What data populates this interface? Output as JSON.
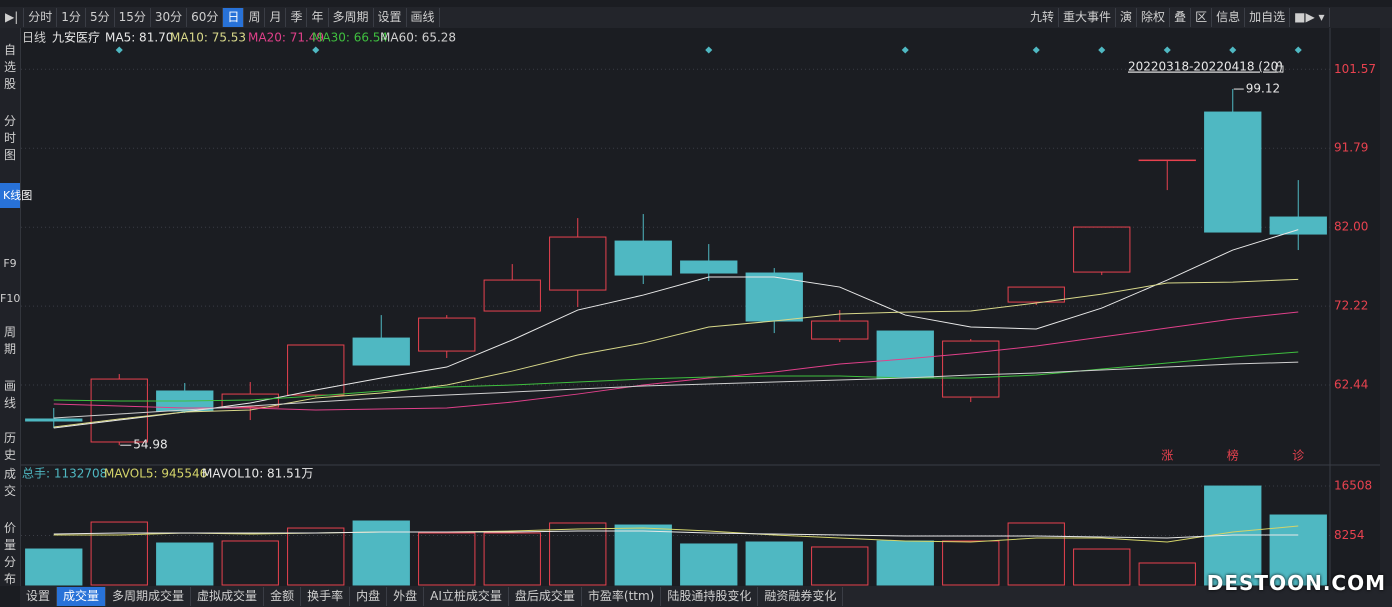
{
  "toolbar": {
    "periods": [
      "分时",
      "1分",
      "5分",
      "15分",
      "30分",
      "60分",
      "日",
      "周",
      "月",
      "季",
      "年",
      "多周期",
      "设置",
      "画线"
    ],
    "active_period": 6,
    "tools": [
      "九转",
      "重大事件",
      "演",
      "除权",
      "叠",
      "区",
      "信息",
      "加自选"
    ]
  },
  "sidebar": {
    "items": [
      "自选股",
      "分时图",
      "K线图",
      "F9",
      "F10",
      "周期",
      "画线",
      "历史",
      "成交",
      "价量分布"
    ],
    "active_item": 2
  },
  "tabs": {
    "items": [
      "设置",
      "成交量",
      "多周期成交量",
      "虚拟成交量",
      "金额",
      "换手率",
      "内盘",
      "外盘",
      "AI立桩成交量",
      "盘后成交量",
      "市盈率(ttm)",
      "陆股通持股变化",
      "融资融券变化"
    ],
    "active_item": 1
  },
  "watermark": "DESTOON.COM",
  "chart_data": [
    {
      "type": "candlestick",
      "title": "日线",
      "subtitle": "九安医疗",
      "period_label": "20220318-20220418 (20)",
      "open": [
        58.23,
        55.38,
        61.7,
        59.71,
        61.2,
        68.26,
        66.65,
        71.61,
        74.21,
        80.28,
        77.81,
        76.32,
        68.14,
        69.13,
        60.95,
        72.72,
        76.44,
        90.32,
        96.27,
        83.26
      ],
      "high": [
        59.59,
        63.8,
        62.69,
        62.81,
        67.4,
        71.11,
        71.11,
        77.43,
        83.13,
        83.63,
        79.91,
        76.94,
        71.73,
        69.13,
        68.14,
        74.58,
        82.02,
        90.32,
        99.12,
        87.84
      ],
      "low": [
        57.11,
        54.98,
        58.97,
        58.1,
        60.95,
        64.92,
        65.79,
        71.61,
        72.11,
        74.96,
        75.33,
        68.88,
        67.77,
        63.31,
        60.33,
        72.35,
        76.07,
        86.6,
        81.4,
        79.17
      ],
      "close": [
        57.98,
        63.18,
        59.22,
        61.32,
        67.4,
        64.92,
        70.74,
        75.45,
        80.78,
        76.07,
        76.32,
        70.37,
        70.37,
        63.31,
        67.89,
        74.58,
        82.02,
        90.32,
        81.4,
        81.15
      ],
      "up_color": "#e8424f",
      "down_color": "#4fb8c2",
      "series": [
        {
          "name": "MA5: 81.70",
          "color": "#e8e8e8",
          "values": [
            57.11,
            58.1,
            59.09,
            60.21,
            61.82,
            63.31,
            64.67,
            68.02,
            71.73,
            73.59,
            75.82,
            75.82,
            74.58,
            71.11,
            69.63,
            69.38,
            71.98,
            75.45,
            79.17,
            81.7
          ]
        },
        {
          "name": "MA10: 75.53",
          "color": "#d8d88a",
          "values": [
            57.24,
            58.23,
            59.09,
            59.34,
            60.83,
            61.45,
            62.44,
            64.17,
            66.16,
            67.64,
            69.63,
            70.37,
            71.24,
            71.48,
            71.61,
            72.6,
            73.71,
            75.08,
            75.2,
            75.53
          ]
        },
        {
          "name": "MA20: 71.49",
          "color": "#e0408a",
          "values": [
            60.09,
            59.84,
            59.59,
            59.59,
            59.34,
            59.47,
            59.59,
            60.33,
            61.32,
            62.44,
            63.31,
            64.05,
            65.04,
            65.66,
            66.4,
            67.27,
            68.39,
            69.5,
            70.62,
            71.49
          ]
        },
        {
          "name": "MA30: 66.54",
          "color": "#3fbf3f",
          "values": [
            60.58,
            60.46,
            60.46,
            60.58,
            61.08,
            61.7,
            62.19,
            62.44,
            62.81,
            63.18,
            63.43,
            63.56,
            63.56,
            63.31,
            63.31,
            63.68,
            64.42,
            65.17,
            65.91,
            66.54
          ]
        },
        {
          "name": "MA60: 65.28",
          "color": "#d0d0d0",
          "values": [
            58.35,
            58.85,
            59.34,
            59.84,
            60.33,
            60.83,
            61.2,
            61.57,
            61.94,
            62.32,
            62.56,
            62.81,
            63.06,
            63.31,
            63.68,
            63.93,
            64.3,
            64.67,
            65.04,
            65.28
          ]
        }
      ],
      "ylim": [
        52.9,
        105.2
      ],
      "yticks": [
        62.44,
        72.22,
        {
          "value": 82,
          "label": "82.00"
        },
        91.79,
        101.57
      ],
      "grid": true,
      "annotations": [
        "涨",
        "榜",
        "诊"
      ]
    },
    {
      "type": "volume",
      "title": "总手: 1132708",
      "title_color": "#4fb8c2",
      "values": [
        6000,
        10500,
        7000,
        7340,
        9500,
        10670,
        8670,
        8670,
        10340,
        10000,
        6840,
        7170,
        6340,
        7340,
        7340,
        10340,
        6000,
        3670,
        16500,
        11670
      ],
      "series": [
        {
          "name": "MAVOL5: 945546",
          "color": "#d4d46a",
          "values": [
            8330,
            8330,
            8670,
            8500,
            8670,
            8830,
            8830,
            9000,
            9330,
            9500,
            9000,
            8330,
            7830,
            7330,
            7170,
            7830,
            7830,
            7170,
            8830,
            9830
          ]
        },
        {
          "name": "MAVOL10: 81.51万",
          "color": "#e8e8e8",
          "values": [
            8500,
            8670,
            8670,
            8670,
            8670,
            8830,
            8830,
            8830,
            9000,
            9000,
            8670,
            8500,
            8330,
            8170,
            8170,
            8170,
            8000,
            7830,
            8330,
            8330
          ]
        }
      ],
      "ylim": [
        0,
        16508
      ],
      "yticks": [
        8254,
        16508
      ],
      "grid": true
    }
  ]
}
